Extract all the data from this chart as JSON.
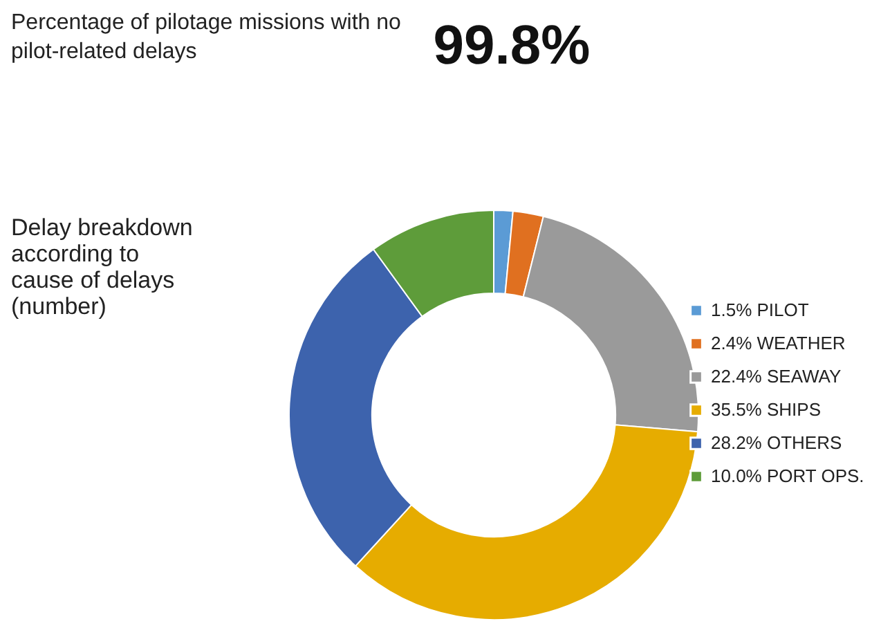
{
  "chart_data": {
    "type": "donut",
    "title": "Percentage of pilotage missions with no pilot-related delays",
    "subtitle": "Delay breakdown according to cause of delays (number)",
    "annotations": [
      "99.8%"
    ],
    "categories": [
      "PILOT",
      "WEATHER",
      "SEAWAY",
      "SHIPS",
      "OTHERS",
      "PORT OPS."
    ],
    "values": [
      1.5,
      2.4,
      22.4,
      35.5,
      28.2,
      10.0
    ],
    "value_labels": [
      "1.5%",
      "2.4%",
      "22.4%",
      "35.5%",
      "28.2%",
      "10.0%"
    ],
    "colors": [
      "#5b9bd5",
      "#e07020",
      "#9a9a9a",
      "#e6ac00",
      "#3d63ad",
      "#5e9c3a"
    ],
    "legend": "right"
  }
}
